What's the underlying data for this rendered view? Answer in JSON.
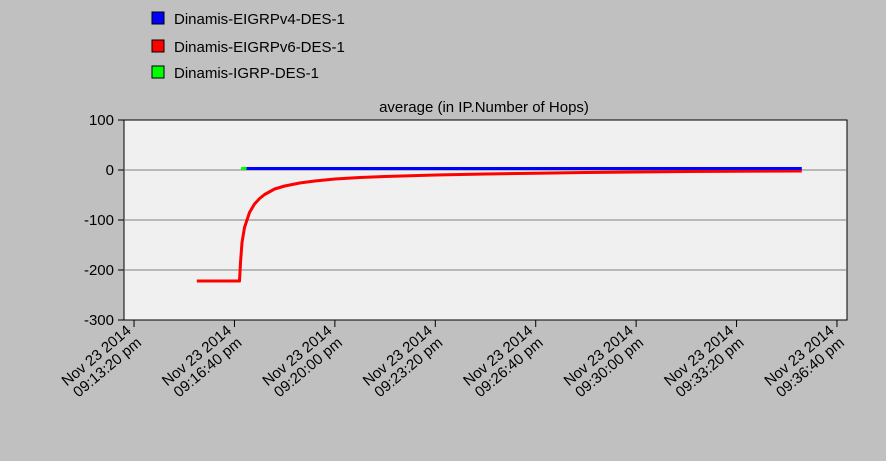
{
  "chart_data": {
    "type": "line",
    "title": "average (in IP.Number of Hops)",
    "xlabel": "",
    "ylabel": "",
    "ylim": [
      -300,
      100
    ],
    "yticks": [
      100,
      0,
      -100,
      -200,
      -300
    ],
    "grid": true,
    "legend_position": "top-left",
    "x_ticks": [
      {
        "t": 0,
        "l1": "Nov 23 2014",
        "l2": "09:13:20 pm"
      },
      {
        "t": 200,
        "l1": "Nov 23 2014",
        "l2": "09:16:40 pm"
      },
      {
        "t": 400,
        "l1": "Nov 23 2014",
        "l2": "09:20:00 pm"
      },
      {
        "t": 600,
        "l1": "Nov 23 2014",
        "l2": "09:23:20 pm"
      },
      {
        "t": 800,
        "l1": "Nov 23 2014",
        "l2": "09:26:40 pm"
      },
      {
        "t": 1000,
        "l1": "Nov 23 2014",
        "l2": "09:30:00 pm"
      },
      {
        "t": 1200,
        "l1": "Nov 23 2014",
        "l2": "09:33:20 pm"
      },
      {
        "t": 1400,
        "l1": "Nov 23 2014",
        "l2": "09:36:40 pm"
      }
    ],
    "xlim": [
      -20,
      1420
    ],
    "series": [
      {
        "name": "Dinamis-EIGRPv4-DES-1",
        "color": "#0000ff",
        "x": [
          224,
          1330
        ],
        "y": [
          3,
          3
        ]
      },
      {
        "name": "Dinamis-EIGRPv6-DES-1",
        "color": "#ff0000",
        "x": [
          125,
          150,
          175,
          200,
          205,
          210,
          212,
          215,
          220,
          230,
          240,
          250,
          260,
          280,
          300,
          330,
          360,
          400,
          450,
          500,
          600,
          700,
          800,
          900,
          1000,
          1100,
          1200,
          1330
        ],
        "y": [
          -222,
          -222,
          -222,
          -222,
          -222,
          -222,
          -185,
          -145,
          -115,
          -85,
          -68,
          -57,
          -49,
          -38,
          -32,
          -26,
          -22,
          -18,
          -15,
          -13,
          -10,
          -8,
          -6.5,
          -5,
          -4,
          -3,
          -2.5,
          -2
        ]
      },
      {
        "name": "Dinamis-IGRP-DES-1",
        "color": "#00ff00",
        "x": [
          213,
          224
        ],
        "y": [
          3,
          3
        ]
      }
    ]
  }
}
